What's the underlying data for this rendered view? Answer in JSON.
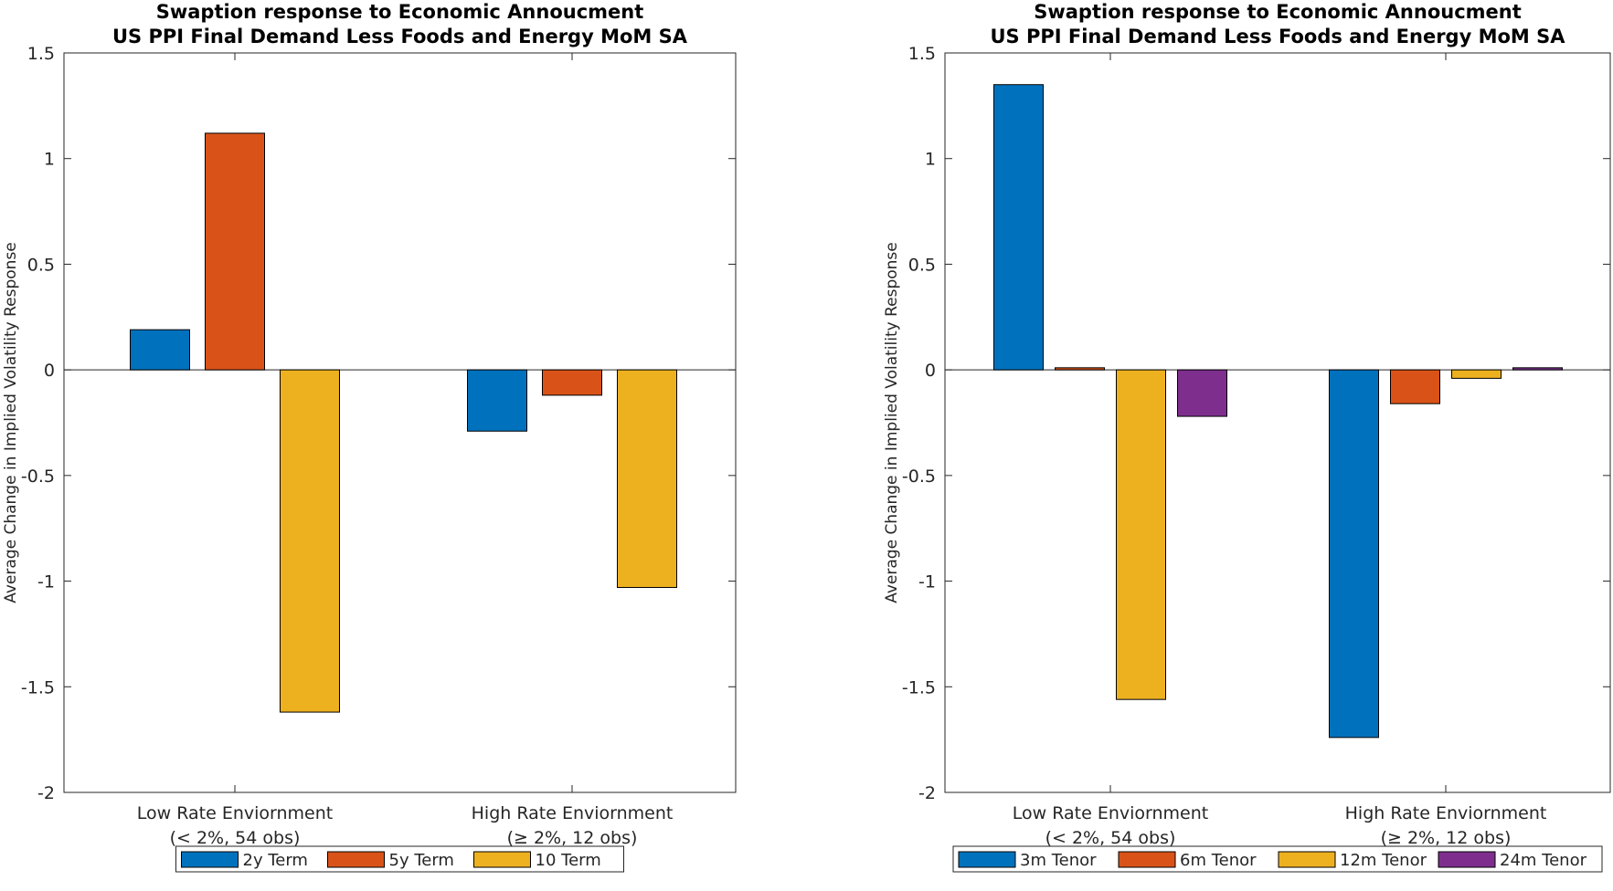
{
  "chart_data": [
    {
      "type": "bar",
      "title": "Swaption response to Economic Annoucment",
      "subtitle": "US PPI Final Demand Less Foods and Energy MoM SA",
      "ylabel": "Average Change in Implied Volatility Response",
      "ylim": [
        -2,
        1.5
      ],
      "yticks": [
        -2,
        -1.5,
        -1,
        -0.5,
        0,
        0.5,
        1,
        1.5
      ],
      "ytick_labels": [
        "-2",
        "-1.5",
        "-1",
        "-0.5",
        "0",
        "0.5",
        "1",
        "1.5"
      ],
      "categories": [
        [
          "Low Rate Enviornment",
          "(< 2%, 54 obs)"
        ],
        [
          "High Rate Enviornment",
          "(≥ 2%, 12 obs)"
        ]
      ],
      "series": [
        {
          "name": "2y Term",
          "color": "#0072BD",
          "values": [
            0.19,
            -0.29
          ]
        },
        {
          "name": "5y Term",
          "color": "#D95319",
          "values": [
            1.12,
            -0.12
          ]
        },
        {
          "name": "10 Term",
          "color": "#EDB120",
          "values": [
            -1.62,
            -1.03
          ]
        }
      ],
      "legend": "bottom-outside",
      "grid": false
    },
    {
      "type": "bar",
      "title": "Swaption response to Economic Annoucment",
      "subtitle": "US PPI Final Demand Less Foods and Energy MoM SA",
      "ylabel": "Average Change in Implied Volatility Response",
      "ylim": [
        -2,
        1.5
      ],
      "yticks": [
        -2,
        -1.5,
        -1,
        -0.5,
        0,
        0.5,
        1,
        1.5
      ],
      "ytick_labels": [
        "-2",
        "-1.5",
        "-1",
        "-0.5",
        "0",
        "0.5",
        "1",
        "1.5"
      ],
      "categories": [
        [
          "Low Rate Enviornment",
          "(< 2%, 54 obs)"
        ],
        [
          "High Rate Enviornment",
          "(≥ 2%, 12 obs)"
        ]
      ],
      "series": [
        {
          "name": "3m Tenor",
          "color": "#0072BD",
          "values": [
            1.35,
            -1.74
          ]
        },
        {
          "name": "6m Tenor",
          "color": "#D95319",
          "values": [
            0.01,
            -0.16
          ]
        },
        {
          "name": "12m Tenor",
          "color": "#EDB120",
          "values": [
            -1.56,
            -0.04
          ]
        },
        {
          "name": "24m Tenor",
          "color": "#7E2F8E",
          "values": [
            -0.22,
            0.01
          ]
        }
      ],
      "legend": "bottom-outside",
      "grid": false
    }
  ]
}
